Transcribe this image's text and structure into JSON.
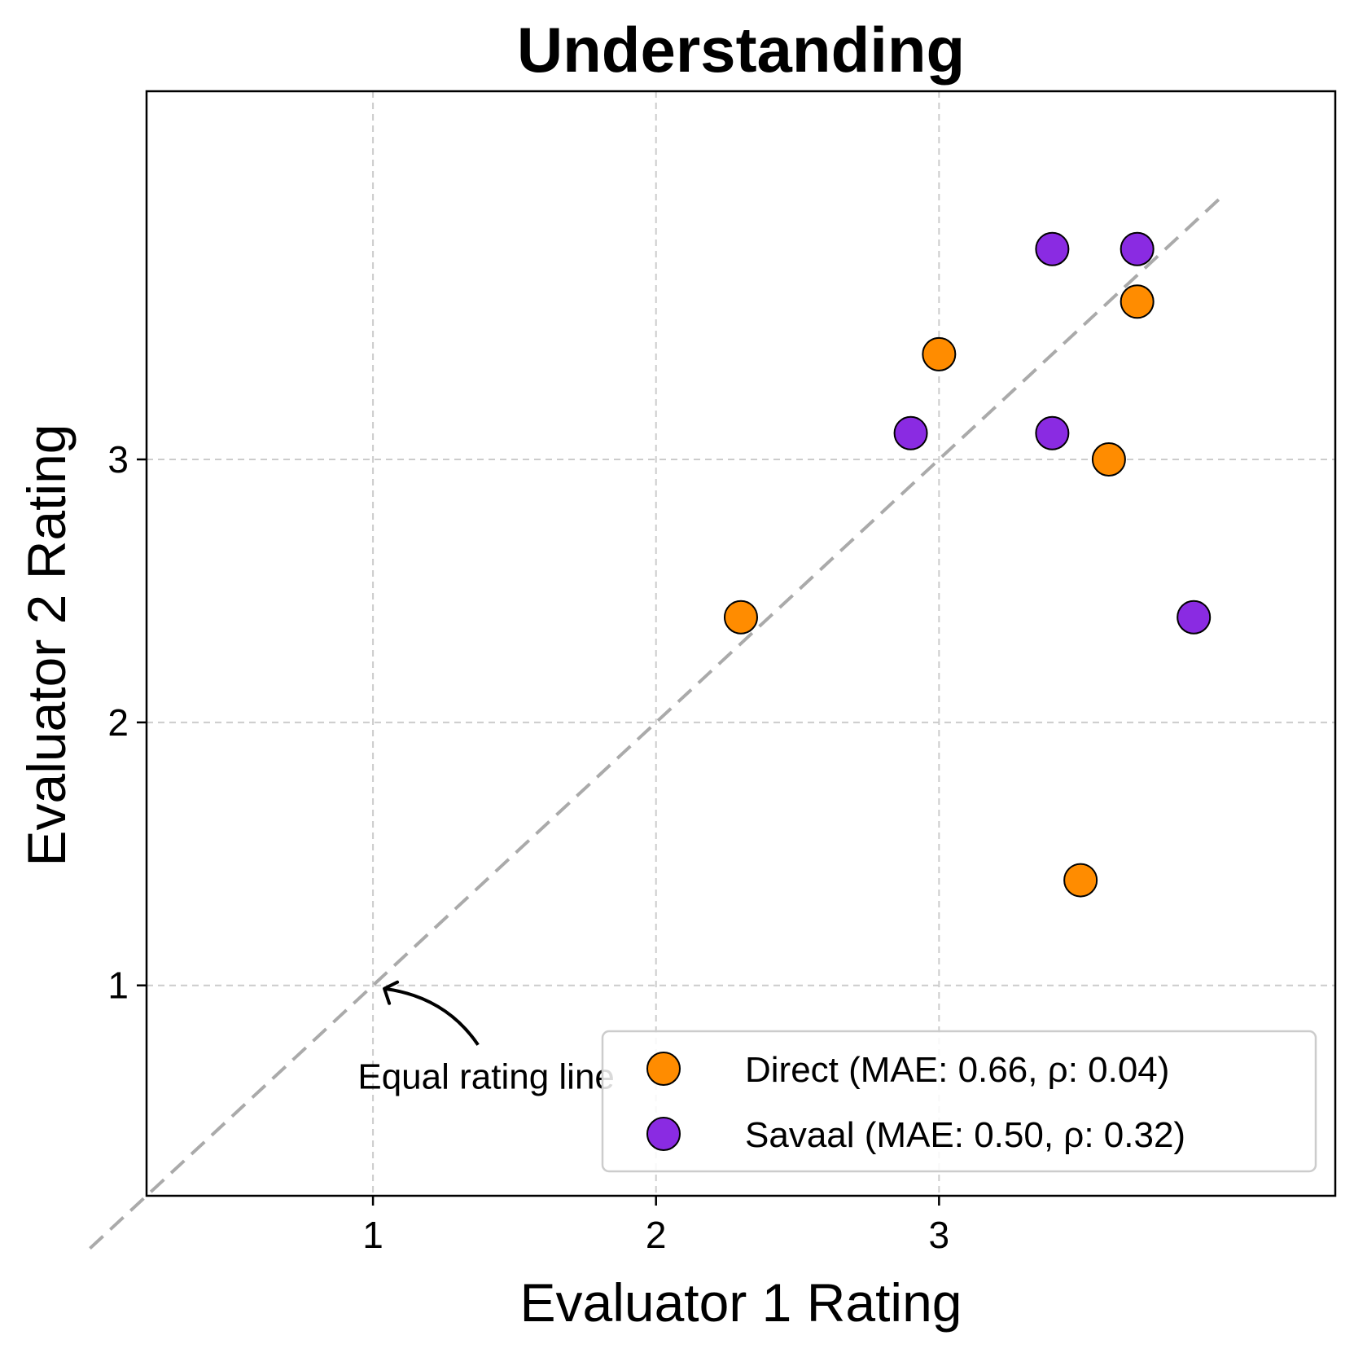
{
  "chart_data": {
    "type": "scatter",
    "title": "Understanding",
    "xlabel": "Evaluator 1 Rating",
    "ylabel": "Evaluator 2 Rating",
    "xlim": [
      0.2,
      4.4
    ],
    "ylim": [
      0.2,
      4.4
    ],
    "xticks": [
      1,
      2,
      3
    ],
    "yticks": [
      1,
      2,
      3
    ],
    "xtick_labels": [
      "1",
      "2",
      "3"
    ],
    "ytick_labels": [
      "1",
      "2",
      "3"
    ],
    "grid": true,
    "legend_position": "bottom-right",
    "reference_line": {
      "label": "Equal rating line",
      "from": [
        0.0,
        0.0
      ],
      "to": [
        4.0,
        4.0
      ],
      "color": "#aaaaaa"
    },
    "annotation": {
      "text": "Equal rating line",
      "points_to": [
        1.0,
        1.0
      ],
      "text_at": [
        1.4,
        0.65
      ]
    },
    "series": [
      {
        "name": "Direct (MAE: 0.66, ρ: 0.04)",
        "color": "#ff8c00",
        "points": [
          [
            2.3,
            2.4
          ],
          [
            3.0,
            3.4
          ],
          [
            3.7,
            3.6
          ],
          [
            3.6,
            3.0
          ],
          [
            3.5,
            1.4
          ]
        ]
      },
      {
        "name": "Savaal (MAE: 0.50, ρ: 0.32)",
        "color": "#8a2be2",
        "points": [
          [
            2.9,
            3.1
          ],
          [
            3.4,
            3.1
          ],
          [
            3.4,
            3.8
          ],
          [
            3.7,
            3.8
          ],
          [
            3.9,
            2.4
          ]
        ]
      }
    ]
  }
}
